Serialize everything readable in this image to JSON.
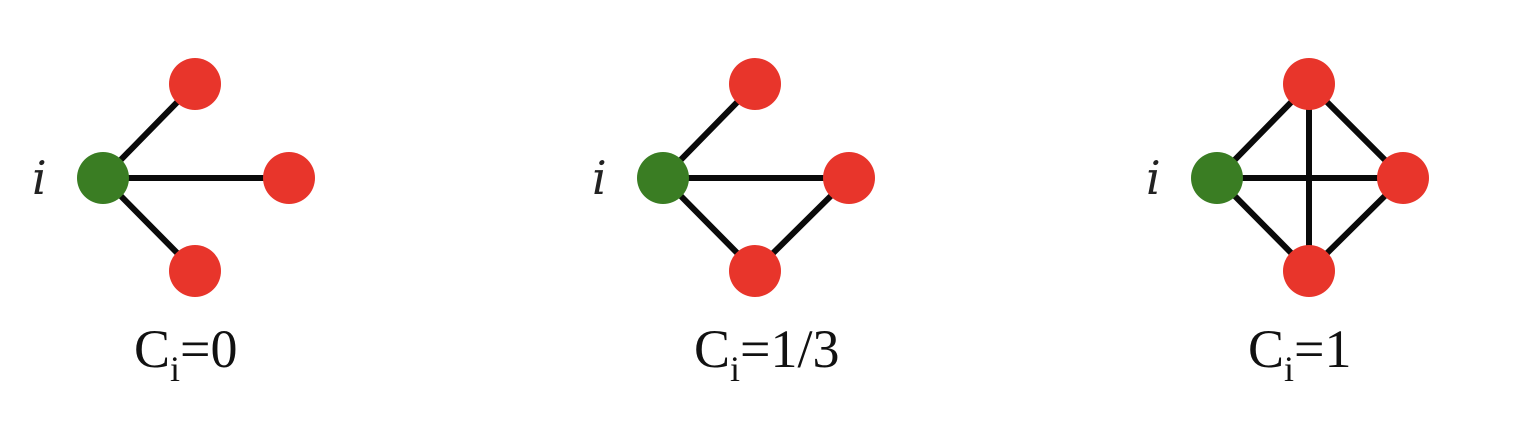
{
  "colors": {
    "center_node": "#3a7d23",
    "neighbor_node": "#e8352b",
    "edge": "#0a0a0a",
    "background": "#ffffff"
  },
  "graphs": [
    {
      "node_label": "i",
      "caption": {
        "main": "C",
        "sub": "i",
        "value": "=0"
      },
      "neighbor_edges": []
    },
    {
      "node_label": "i",
      "caption": {
        "main": "C",
        "sub": "i",
        "value": "=1/3"
      },
      "neighbor_edges": [
        [
          "right",
          "bottom"
        ]
      ]
    },
    {
      "node_label": "i",
      "caption": {
        "main": "C",
        "sub": "i",
        "value": "=1"
      },
      "neighbor_edges": [
        [
          "top",
          "right"
        ],
        [
          "right",
          "bottom"
        ],
        [
          "top",
          "bottom"
        ]
      ]
    }
  ]
}
